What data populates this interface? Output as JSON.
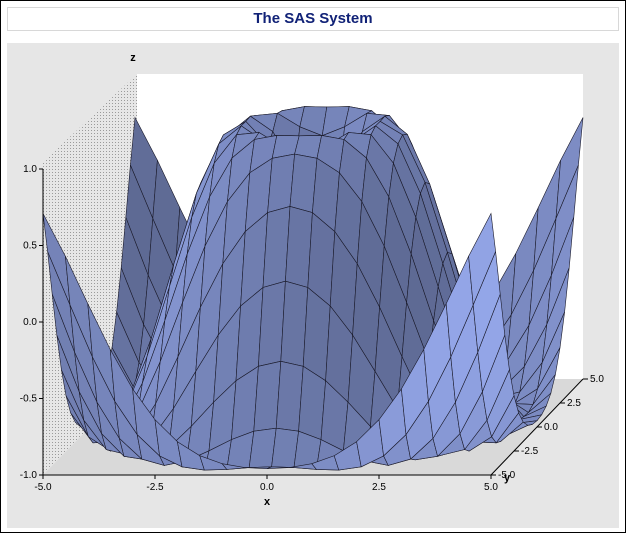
{
  "title": "The SAS System",
  "chart_data": {
    "type": "surface",
    "title": "The SAS System",
    "xlabel": "x",
    "ylabel": "y",
    "zlabel": "z",
    "x_ticks": [
      "-5.0",
      "-2.5",
      "0.0",
      "2.5",
      "5.0"
    ],
    "y_ticks": [
      "-5.0",
      "-2.5",
      "0.0",
      "2.5",
      "5.0"
    ],
    "z_ticks": [
      "-1.0",
      "-0.5",
      "0.0",
      "0.5",
      "1.0"
    ],
    "xlim": [
      -5,
      5
    ],
    "ylim": [
      -5,
      5
    ],
    "zlim": [
      -1,
      1
    ],
    "function": "z = sin(sqrt(x^2 + y^2))",
    "surface_color": "#7f8fc8",
    "wall_color": "#e6e6e6"
  }
}
